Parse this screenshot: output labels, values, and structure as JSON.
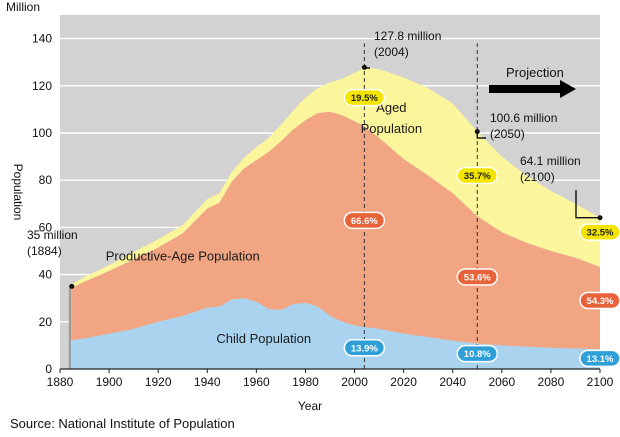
{
  "chart_data": {
    "type": "area",
    "stacked": true,
    "title": "",
    "xlabel": "Year",
    "ylabel": "Population",
    "yunit": "Million",
    "xlim": [
      1880,
      2100
    ],
    "ylim": [
      0,
      150
    ],
    "x_ticks": [
      1880,
      1900,
      1920,
      1940,
      1960,
      1980,
      2000,
      2020,
      2040,
      2060,
      2080,
      2100
    ],
    "y_ticks": [
      0,
      20,
      40,
      60,
      80,
      100,
      120,
      140
    ],
    "grid": true,
    "series": [
      {
        "name": "Child Population",
        "color": "#a9d3ee",
        "x": [
          1884,
          1890,
          1900,
          1910,
          1920,
          1930,
          1940,
          1945,
          1950,
          1955,
          1960,
          1965,
          1970,
          1975,
          1980,
          1985,
          1990,
          1995,
          2000,
          2004,
          2010,
          2020,
          2030,
          2040,
          2050,
          2060,
          2070,
          2080,
          2090,
          2100
        ],
        "values": [
          12,
          13,
          15,
          17,
          20,
          22.5,
          26,
          26.5,
          29.5,
          30,
          28.5,
          25.5,
          25,
          27.5,
          28,
          26.5,
          22.5,
          20,
          18.5,
          17.8,
          17,
          15,
          13.5,
          12,
          10.8,
          10,
          9.5,
          9,
          8.7,
          8.4
        ]
      },
      {
        "name": "Productive-Age Population",
        "color": "#f1a583",
        "x": [
          1884,
          1890,
          1900,
          1910,
          1920,
          1930,
          1940,
          1945,
          1950,
          1955,
          1960,
          1965,
          1970,
          1975,
          1980,
          1985,
          1990,
          1995,
          2000,
          2004,
          2010,
          2020,
          2030,
          2040,
          2050,
          2060,
          2070,
          2080,
          2090,
          2100
        ],
        "values": [
          22,
          24,
          26.5,
          29.5,
          31.5,
          35,
          42,
          44,
          50,
          55,
          60,
          66.5,
          71.5,
          74,
          77.5,
          82,
          86.5,
          87.5,
          86.5,
          85.1,
          81,
          74,
          68.5,
          62.5,
          54,
          48,
          44,
          41,
          38.5,
          34.8
        ]
      },
      {
        "name": "Aged Population",
        "color": "#fbf59b",
        "x": [
          1884,
          1890,
          1900,
          1910,
          1920,
          1930,
          1940,
          1945,
          1950,
          1955,
          1960,
          1965,
          1970,
          1975,
          1980,
          1985,
          1990,
          1995,
          2000,
          2004,
          2010,
          2020,
          2030,
          2040,
          2050,
          2060,
          2070,
          2080,
          2090,
          2100
        ],
        "values": [
          1.5,
          2,
          2.5,
          3,
          3.5,
          3.5,
          4,
          4,
          4,
          4.5,
          5.5,
          6,
          7,
          8,
          9.5,
          10.5,
          12.5,
          15.5,
          20.5,
          24.9,
          29,
          34.5,
          37,
          38,
          35.8,
          32,
          28.5,
          25.5,
          22.8,
          20.9
        ]
      }
    ],
    "callouts": [
      {
        "x": 1884,
        "y": 35,
        "lines": [
          "35 million",
          "(1884)"
        ]
      },
      {
        "x": 2004,
        "y": 127.8,
        "lines": [
          "127.8 million",
          "(2004)"
        ]
      },
      {
        "x": 2050,
        "y": 100.6,
        "lines": [
          "100.6 million",
          "(2050)"
        ]
      },
      {
        "x": 2100,
        "y": 64.1,
        "lines": [
          "64.1 million",
          "(2100)"
        ]
      }
    ],
    "region_labels": [
      {
        "text": "Aged",
        "x": 2015,
        "y": 109
      },
      {
        "text": "Population",
        "x": 2015,
        "y": 100
      },
      {
        "text": "Productive-Age Population",
        "x": 1930,
        "y": 46
      },
      {
        "text": "Child Population",
        "x": 1963,
        "y": 11
      }
    ],
    "percentages": [
      {
        "x": 2004,
        "y": 115,
        "text": "19.5%",
        "fill": "#f4e500",
        "border": "#ffffff",
        "color": "#222222"
      },
      {
        "x": 2004,
        "y": 63,
        "text": "66.6%",
        "fill": "#e8623a",
        "border": "#ffffff",
        "color": "#ffffff"
      },
      {
        "x": 2004,
        "y": 9,
        "text": "13.9%",
        "fill": "#2f9fd8",
        "border": "#ffffff",
        "color": "#ffffff"
      },
      {
        "x": 2050,
        "y": 82,
        "text": "35.7%",
        "fill": "#f4e500",
        "border": "#ffffff",
        "color": "#222222"
      },
      {
        "x": 2050,
        "y": 39,
        "text": "53.6%",
        "fill": "#e8623a",
        "border": "#ffffff",
        "color": "#ffffff"
      },
      {
        "x": 2050,
        "y": 6.5,
        "text": "10.8%",
        "fill": "#2f9fd8",
        "border": "#ffffff",
        "color": "#ffffff"
      },
      {
        "x": 2100,
        "y": 58,
        "text": "32.5%",
        "fill": "#f4e500",
        "border": "#ffffff",
        "color": "#222222"
      },
      {
        "x": 2100,
        "y": 29,
        "text": "54.3%",
        "fill": "#e8623a",
        "border": "#ffffff",
        "color": "#ffffff"
      },
      {
        "x": 2100,
        "y": 4.5,
        "text": "13.1%",
        "fill": "#2f9fd8",
        "border": "#ffffff",
        "color": "#ffffff"
      }
    ],
    "dashed_lines_at": [
      2004,
      2050
    ],
    "projection_label": "Projection",
    "source": "Source: National Institute of Population"
  }
}
